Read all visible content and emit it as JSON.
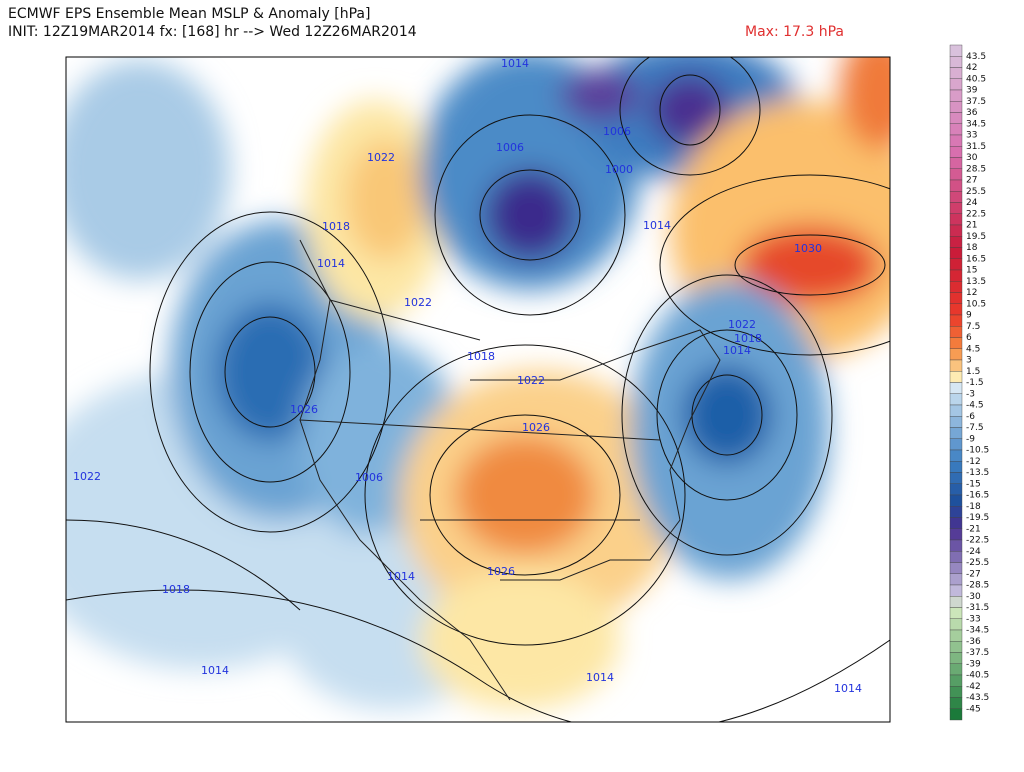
{
  "header": {
    "title": "ECMWF EPS Ensemble Mean MSLP & Anomaly [hPa]",
    "init": "INIT: 12Z19MAR2014 fx: [168] hr --> Wed 12Z26MAR2014",
    "max": "Max: 17.3 hPa"
  },
  "colorbar": {
    "labels": [
      43.5,
      42,
      40.5,
      39,
      37.5,
      36,
      34.5,
      33,
      31.5,
      30,
      28.5,
      27,
      25.5,
      24,
      22.5,
      21,
      19.5,
      18,
      16.5,
      15,
      13.5,
      12,
      10.5,
      9,
      7.5,
      6,
      4.5,
      3,
      1.5,
      -1.5,
      -3,
      -4.5,
      -6,
      -7.5,
      -9,
      -10.5,
      -12,
      -13.5,
      -15,
      -16.5,
      -18,
      -19.5,
      -21,
      -22.5,
      -24,
      -25.5,
      -27,
      -28.5,
      -30,
      -31.5,
      -33,
      -34.5,
      -36,
      -37.5,
      -39,
      -40.5,
      -42,
      -43.5,
      -45
    ]
  },
  "isobar_labels": [
    "1014",
    "1022",
    "1018",
    "1014",
    "1022",
    "1018",
    "1022",
    "1026",
    "1026",
    "1006",
    "1022",
    "1018",
    "1014",
    "1014",
    "1026",
    "1014",
    "1014",
    "1014",
    "1022",
    "1018",
    "1014",
    "1030",
    "1006",
    "1000",
    "1006"
  ]
}
